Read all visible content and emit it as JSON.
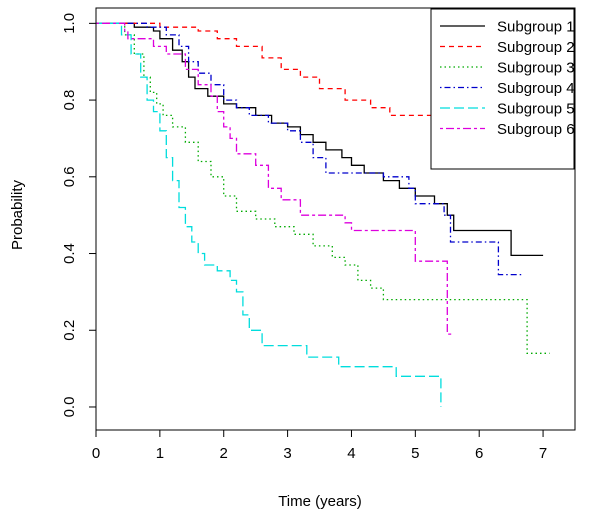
{
  "chart_data": {
    "type": "line",
    "step": true,
    "title": "",
    "xlabel": "Time (years)",
    "ylabel": "Probability",
    "xlim": [
      0,
      7.5
    ],
    "ylim": [
      -0.06,
      1.04
    ],
    "xticks": [
      0,
      1,
      2,
      3,
      4,
      5,
      6,
      7
    ],
    "yticks": [
      0.0,
      0.2,
      0.4,
      0.6,
      0.8,
      1.0
    ],
    "xtick_labels": [
      "0",
      "1",
      "2",
      "3",
      "4",
      "5",
      "6",
      "7"
    ],
    "ytick_labels": [
      "0.0",
      "0.2",
      "0.4",
      "0.6",
      "0.8",
      "1.0"
    ],
    "grid": false,
    "legend": {
      "position": "top-right"
    },
    "series": [
      {
        "name": "Subgroup 1",
        "color": "#000000",
        "dash": "solid",
        "points": [
          [
            0,
            1.0
          ],
          [
            0.6,
            0.99
          ],
          [
            0.9,
            0.98
          ],
          [
            1.0,
            0.96
          ],
          [
            1.2,
            0.93
          ],
          [
            1.35,
            0.9
          ],
          [
            1.45,
            0.86
          ],
          [
            1.55,
            0.83
          ],
          [
            1.75,
            0.81
          ],
          [
            2.0,
            0.79
          ],
          [
            2.2,
            0.78
          ],
          [
            2.5,
            0.76
          ],
          [
            2.75,
            0.74
          ],
          [
            3.0,
            0.73
          ],
          [
            3.2,
            0.71
          ],
          [
            3.4,
            0.69
          ],
          [
            3.6,
            0.67
          ],
          [
            3.85,
            0.65
          ],
          [
            4.0,
            0.63
          ],
          [
            4.2,
            0.61
          ],
          [
            4.5,
            0.59
          ],
          [
            4.75,
            0.57
          ],
          [
            5.0,
            0.55
          ],
          [
            5.3,
            0.53
          ],
          [
            5.5,
            0.5
          ],
          [
            5.6,
            0.46
          ],
          [
            6.0,
            0.46
          ],
          [
            6.5,
            0.395
          ],
          [
            7.0,
            0.395
          ]
        ]
      },
      {
        "name": "Subgroup 2",
        "color": "#ff0000",
        "dash": "dashed",
        "points": [
          [
            0,
            1.0
          ],
          [
            1.0,
            0.99
          ],
          [
            1.6,
            0.98
          ],
          [
            1.9,
            0.96
          ],
          [
            2.2,
            0.94
          ],
          [
            2.6,
            0.91
          ],
          [
            2.9,
            0.88
          ],
          [
            3.2,
            0.86
          ],
          [
            3.5,
            0.83
          ],
          [
            3.9,
            0.8
          ],
          [
            4.3,
            0.78
          ],
          [
            4.6,
            0.76
          ],
          [
            5.0,
            0.76
          ],
          [
            5.5,
            0.71
          ],
          [
            6.0,
            0.69
          ],
          [
            6.6,
            0.69
          ]
        ]
      },
      {
        "name": "Subgroup 3",
        "color": "#00aa00",
        "dash": "dotted",
        "points": [
          [
            0,
            1.0
          ],
          [
            0.45,
            0.97
          ],
          [
            0.6,
            0.92
          ],
          [
            0.75,
            0.86
          ],
          [
            0.85,
            0.82
          ],
          [
            0.95,
            0.79
          ],
          [
            1.05,
            0.76
          ],
          [
            1.2,
            0.73
          ],
          [
            1.4,
            0.69
          ],
          [
            1.6,
            0.64
          ],
          [
            1.8,
            0.6
          ],
          [
            2.0,
            0.55
          ],
          [
            2.2,
            0.51
          ],
          [
            2.5,
            0.49
          ],
          [
            2.8,
            0.47
          ],
          [
            3.1,
            0.45
          ],
          [
            3.4,
            0.42
          ],
          [
            3.7,
            0.39
          ],
          [
            3.9,
            0.37
          ],
          [
            4.1,
            0.33
          ],
          [
            4.3,
            0.31
          ],
          [
            4.5,
            0.28
          ],
          [
            5.0,
            0.28
          ],
          [
            6.0,
            0.28
          ],
          [
            6.7,
            0.28
          ],
          [
            6.75,
            0.14
          ],
          [
            7.1,
            0.14
          ]
        ]
      },
      {
        "name": "Subgroup 4",
        "color": "#0000cc",
        "dash": "dotdash",
        "points": [
          [
            0,
            1.0
          ],
          [
            0.5,
            1.0
          ],
          [
            0.8,
            0.99
          ],
          [
            1.1,
            0.97
          ],
          [
            1.3,
            0.94
          ],
          [
            1.45,
            0.9
          ],
          [
            1.6,
            0.87
          ],
          [
            1.8,
            0.84
          ],
          [
            2.0,
            0.8
          ],
          [
            2.2,
            0.78
          ],
          [
            2.4,
            0.76
          ],
          [
            2.7,
            0.74
          ],
          [
            3.0,
            0.72
          ],
          [
            3.2,
            0.69
          ],
          [
            3.4,
            0.65
          ],
          [
            3.6,
            0.61
          ],
          [
            4.0,
            0.61
          ],
          [
            4.5,
            0.6
          ],
          [
            4.9,
            0.57
          ],
          [
            5.0,
            0.53
          ],
          [
            5.45,
            0.5
          ],
          [
            5.55,
            0.43
          ],
          [
            6.0,
            0.43
          ],
          [
            6.3,
            0.345
          ],
          [
            6.7,
            0.345
          ]
        ]
      },
      {
        "name": "Subgroup 5",
        "color": "#00dddd",
        "dash": "longdash",
        "points": [
          [
            0,
            1.0
          ],
          [
            0.4,
            0.97
          ],
          [
            0.55,
            0.92
          ],
          [
            0.7,
            0.86
          ],
          [
            0.8,
            0.8
          ],
          [
            0.9,
            0.77
          ],
          [
            1.0,
            0.72
          ],
          [
            1.1,
            0.65
          ],
          [
            1.2,
            0.59
          ],
          [
            1.3,
            0.52
          ],
          [
            1.4,
            0.47
          ],
          [
            1.5,
            0.43
          ],
          [
            1.6,
            0.4
          ],
          [
            1.7,
            0.37
          ],
          [
            1.9,
            0.355
          ],
          [
            2.1,
            0.33
          ],
          [
            2.2,
            0.3
          ],
          [
            2.3,
            0.24
          ],
          [
            2.4,
            0.2
          ],
          [
            2.6,
            0.16
          ],
          [
            3.0,
            0.16
          ],
          [
            3.3,
            0.13
          ],
          [
            3.8,
            0.105
          ],
          [
            4.7,
            0.08
          ],
          [
            5.4,
            0.0
          ]
        ]
      },
      {
        "name": "Subgroup 6",
        "color": "#dd00dd",
        "dash": "twodash",
        "points": [
          [
            0,
            1.0
          ],
          [
            0.45,
            0.98
          ],
          [
            0.5,
            0.96
          ],
          [
            0.9,
            0.94
          ],
          [
            1.1,
            0.92
          ],
          [
            1.4,
            0.88
          ],
          [
            1.6,
            0.84
          ],
          [
            1.8,
            0.81
          ],
          [
            1.9,
            0.77
          ],
          [
            2.0,
            0.73
          ],
          [
            2.1,
            0.7
          ],
          [
            2.2,
            0.66
          ],
          [
            2.5,
            0.63
          ],
          [
            2.7,
            0.57
          ],
          [
            2.9,
            0.54
          ],
          [
            3.2,
            0.5
          ],
          [
            3.8,
            0.5
          ],
          [
            3.9,
            0.48
          ],
          [
            4.0,
            0.46
          ],
          [
            4.9,
            0.46
          ],
          [
            5.0,
            0.38
          ],
          [
            5.4,
            0.38
          ],
          [
            5.5,
            0.19
          ],
          [
            5.6,
            0.19
          ]
        ]
      }
    ]
  }
}
